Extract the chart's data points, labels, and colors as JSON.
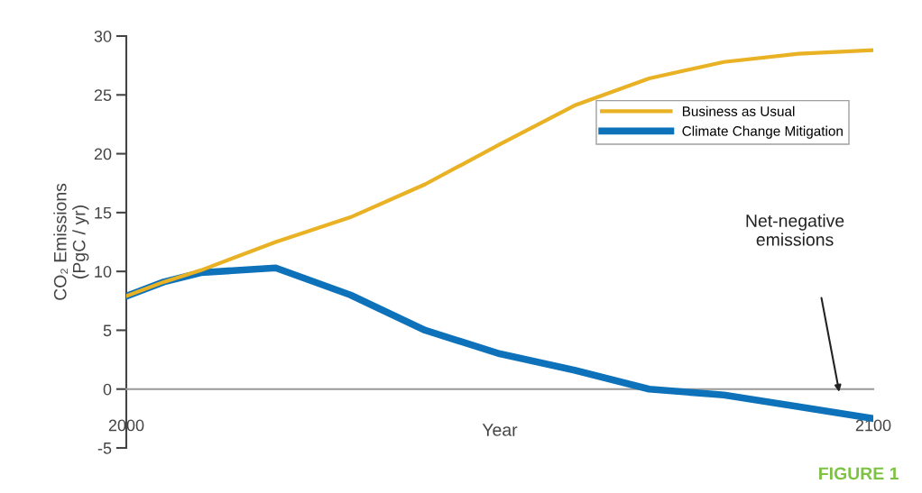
{
  "chart_data": {
    "type": "line",
    "xlabel": "Year",
    "ylabel": "CO₂ Emissions\n(PgC / yr)",
    "x": [
      2000,
      2005,
      2010,
      2020,
      2030,
      2040,
      2050,
      2060,
      2070,
      2080,
      2090,
      2100
    ],
    "series": [
      {
        "name": "Business as Usual",
        "color": "#e9b124",
        "values": [
          7.9,
          9.1,
          10.1,
          12.5,
          14.6,
          17.4,
          20.8,
          24.1,
          26.4,
          27.8,
          28.5,
          28.8
        ]
      },
      {
        "name": "Climate Change Mitigation",
        "color": "#0d72b9",
        "values": [
          7.9,
          9.1,
          9.9,
          10.3,
          8.0,
          5.0,
          3.0,
          1.6,
          0.0,
          -0.5,
          -1.5,
          -2.5
        ]
      }
    ],
    "xlim": [
      2000,
      2100
    ],
    "xticks": [
      2000,
      2100
    ],
    "ylim": [
      -5,
      30
    ],
    "yticks": [
      -5,
      0,
      5,
      10,
      15,
      20,
      25,
      30
    ],
    "annotations": [
      "Net-negative\nemissions",
      "FIGURE 1"
    ],
    "legend": "top right",
    "grid": false,
    "marker": "none",
    "line_style": "solid"
  }
}
